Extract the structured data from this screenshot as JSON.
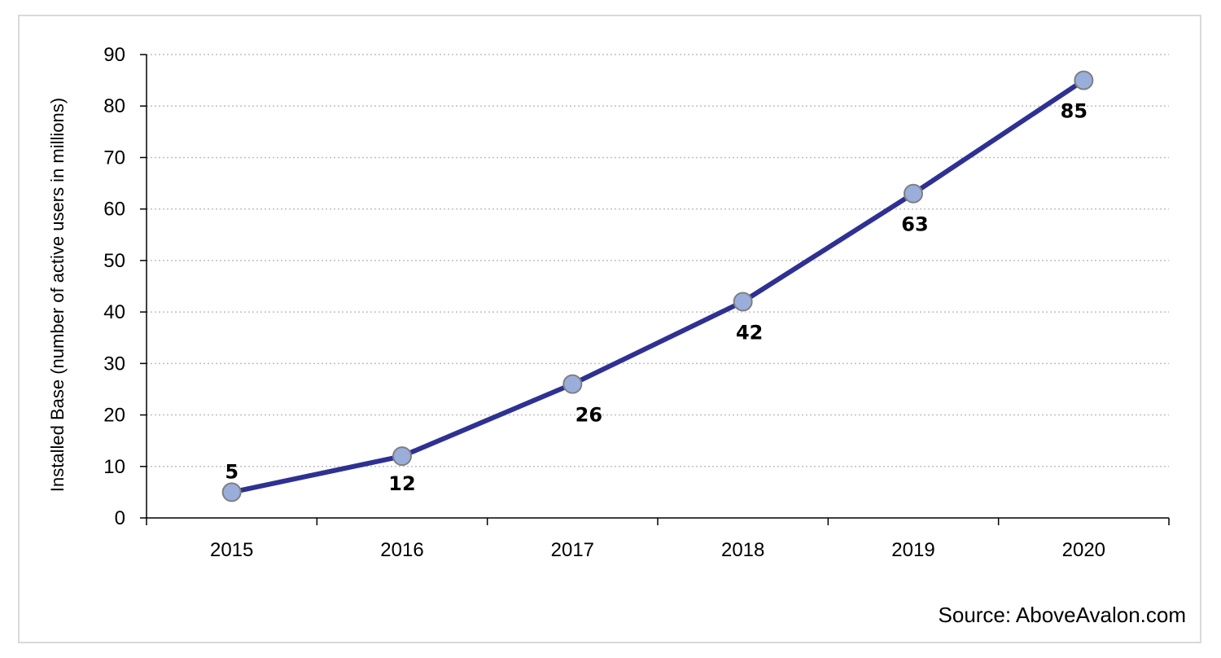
{
  "chart_data": {
    "type": "line",
    "x": [
      "2015",
      "2016",
      "2017",
      "2018",
      "2019",
      "2020"
    ],
    "series": [
      {
        "values": [
          5,
          12,
          26,
          42,
          63,
          85
        ],
        "data_labels": [
          "5",
          "12",
          "26",
          "42",
          "63",
          "85"
        ],
        "line_color": "#2e3192",
        "marker_color": "#9aaedb",
        "marker_edge_color": "#7f7f7f"
      }
    ],
    "title": "",
    "xlabel": "",
    "ylabel": "Installed Base (number of active users in millions)",
    "ylim": [
      0,
      90
    ],
    "yticks": [
      "0",
      "10",
      "20",
      "30",
      "40",
      "50",
      "60",
      "70",
      "80",
      "90"
    ],
    "grid": "horizontal dotted",
    "legend": "none",
    "source": "Source: AboveAvalon.com"
  },
  "colors": {
    "gridline": "#bfbfbf",
    "axis": "#000000",
    "frame": "#d9d9d9"
  }
}
